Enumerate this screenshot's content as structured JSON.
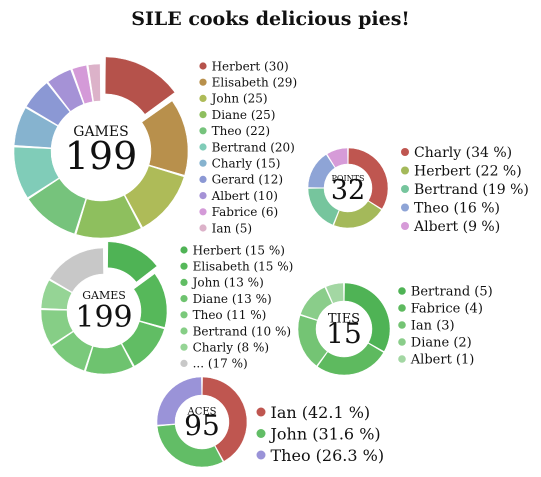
{
  "title": "SILE cooks delicious pies!",
  "chart_data": [
    {
      "type": "pie",
      "center_label": "GAMES",
      "center_value": "199",
      "legend_position": "right",
      "slices": [
        {
          "label": "Herbert (30)",
          "value": 30,
          "color": "#b5524b",
          "exploded": true
        },
        {
          "label": "Elisabeth (29)",
          "value": 29,
          "color": "#b8904c"
        },
        {
          "label": "John (25)",
          "value": 25,
          "color": "#aebb58"
        },
        {
          "label": "Diane (25)",
          "value": 25,
          "color": "#8ebf5e"
        },
        {
          "label": "Theo (22)",
          "value": 22,
          "color": "#76c37c"
        },
        {
          "label": "Bertrand (20)",
          "value": 20,
          "color": "#80ccb8"
        },
        {
          "label": "Charly (15)",
          "value": 15,
          "color": "#86b3cf"
        },
        {
          "label": "Gerard (12)",
          "value": 12,
          "color": "#8b98d4"
        },
        {
          "label": "Albert (10)",
          "value": 10,
          "color": "#a592d6"
        },
        {
          "label": "Fabrice (6)",
          "value": 6,
          "color": "#d49ad8"
        },
        {
          "label": "Ian (5)",
          "value": 5,
          "color": "#dcb2c9"
        }
      ]
    },
    {
      "type": "pie",
      "center_label": "POINTS",
      "center_value": "32",
      "legend_position": "right",
      "slices": [
        {
          "label": "Charly (34 %)",
          "value": 34,
          "color": "#bf5650"
        },
        {
          "label": "Herbert (22 %)",
          "value": 22,
          "color": "#a4b95a"
        },
        {
          "label": "Bertrand (19 %)",
          "value": 19,
          "color": "#76c59d"
        },
        {
          "label": "Theo (16 %)",
          "value": 16,
          "color": "#8ea4d6"
        },
        {
          "label": "Albert (9 %)",
          "value": 9,
          "color": "#d69bd8"
        }
      ]
    },
    {
      "type": "pie",
      "center_label": "GAMES",
      "center_value": "199",
      "legend_position": "right",
      "slices": [
        {
          "label": "Herbert (15 %)",
          "value": 15,
          "color": "#4fb355",
          "exploded": true
        },
        {
          "label": "Elisabeth (15 %)",
          "value": 15,
          "color": "#56b85a"
        },
        {
          "label": "John (13 %)",
          "value": 13,
          "color": "#61bd64"
        },
        {
          "label": "Diane (13 %)",
          "value": 13,
          "color": "#6ec36f"
        },
        {
          "label": "Theo (11 %)",
          "value": 11,
          "color": "#7ac97b"
        },
        {
          "label": "Bertrand (10 %)",
          "value": 10,
          "color": "#86ce86"
        },
        {
          "label": "Charly (8 %)",
          "value": 8,
          "color": "#95d495"
        },
        {
          "label": "... (17 %)",
          "value": 17,
          "color": "#c8c8c8"
        }
      ]
    },
    {
      "type": "pie",
      "center_label": "TIES",
      "center_value": "15",
      "legend_position": "right",
      "slices": [
        {
          "label": "Bertrand (5)",
          "value": 5,
          "color": "#4fb355"
        },
        {
          "label": "Fabrice (4)",
          "value": 4,
          "color": "#5eba5f"
        },
        {
          "label": "Ian (3)",
          "value": 3,
          "color": "#74c474"
        },
        {
          "label": "Diane (2)",
          "value": 2,
          "color": "#8acd8a"
        },
        {
          "label": "Albert (1)",
          "value": 1,
          "color": "#a3d7a3"
        }
      ]
    },
    {
      "type": "pie",
      "center_label": "ACES",
      "center_value": "95",
      "legend_position": "right",
      "slices": [
        {
          "label": "Ian (42.1 %)",
          "value": 42.1,
          "color": "#bf5650"
        },
        {
          "label": "John (31.6 %)",
          "value": 31.6,
          "color": "#62bd66"
        },
        {
          "label": "Theo (26.3 %)",
          "value": 26.3,
          "color": "#9a93d8"
        }
      ]
    }
  ]
}
